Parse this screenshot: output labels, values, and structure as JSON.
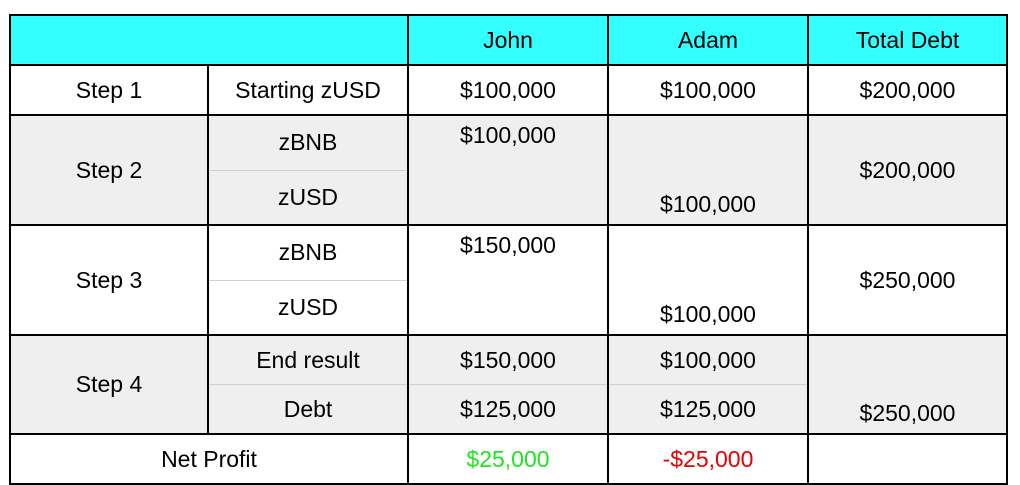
{
  "header": {
    "col1": "",
    "john": "John",
    "adam": "Adam",
    "total": "Total Debt"
  },
  "step1": {
    "label": "Step 1",
    "item": "Starting zUSD",
    "john": "$100,000",
    "adam": "$100,000",
    "total": "$200,000"
  },
  "step2": {
    "label": "Step 2",
    "item1": "zBNB",
    "item2": "zUSD",
    "john": "$100,000",
    "adam": "$100,000",
    "total": "$200,000"
  },
  "step3": {
    "label": "Step 3",
    "item1": "zBNB",
    "item2": "zUSD",
    "john": "$150,000",
    "adam": "$100,000",
    "total": "$250,000"
  },
  "step4": {
    "label": "Step 4",
    "item1": "End result",
    "item2": "Debt",
    "john1": "$150,000",
    "john2": "$125,000",
    "adam1": "$100,000",
    "adam2": "$125,000",
    "total": "$250,000"
  },
  "net": {
    "label": "Net Profit",
    "john": "$25,000",
    "adam": "-$25,000",
    "total": ""
  },
  "colors": {
    "header_bg": "#33ffff",
    "row_grey": "#efefef",
    "positive": "#1ee61e",
    "negative": "#e60000"
  }
}
